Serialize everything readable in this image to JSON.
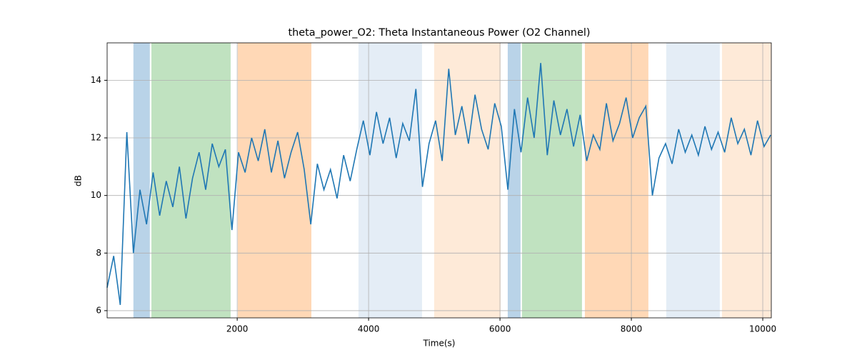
{
  "chart_data": {
    "type": "line",
    "title": "theta_power_O2: Theta Instantaneous Power (O2 Channel)",
    "xlabel": "Time(s)",
    "ylabel": "dB",
    "xlim": [
      20,
      10130
    ],
    "ylim": [
      5.75,
      15.3
    ],
    "xticks": [
      2000,
      4000,
      6000,
      8000,
      10000
    ],
    "yticks": [
      6,
      8,
      10,
      12,
      14
    ],
    "grid": true,
    "spans": [
      {
        "start": 420,
        "end": 670,
        "color": "#b9d3e8"
      },
      {
        "start": 694,
        "end": 1900,
        "color": "#c0e2c0"
      },
      {
        "start": 2009,
        "end": 3129,
        "color": "#ffd8b6"
      },
      {
        "start": 3846,
        "end": 4813,
        "color": "#e4edf6"
      },
      {
        "start": 4998,
        "end": 6009,
        "color": "#feead8"
      },
      {
        "start": 6118,
        "end": 6313,
        "color": "#b9d3e8"
      },
      {
        "start": 6335,
        "end": 7248,
        "color": "#c0e2c0"
      },
      {
        "start": 7292,
        "end": 8259,
        "color": "#ffd8b6"
      },
      {
        "start": 8531,
        "end": 9346,
        "color": "#e4edf6"
      },
      {
        "start": 9379,
        "end": 10130,
        "color": "#feead8"
      }
    ],
    "series": [
      {
        "name": "theta_power_O2",
        "color": "#1f77b4",
        "x": [
          20,
          120,
          220,
          320,
          420,
          520,
          620,
          720,
          820,
          920,
          1020,
          1120,
          1220,
          1320,
          1420,
          1520,
          1620,
          1720,
          1820,
          1920,
          2020,
          2120,
          2220,
          2320,
          2420,
          2520,
          2620,
          2720,
          2820,
          2920,
          3020,
          3120,
          3220,
          3320,
          3420,
          3520,
          3620,
          3720,
          3820,
          3920,
          4020,
          4120,
          4220,
          4320,
          4420,
          4520,
          4620,
          4720,
          4820,
          4920,
          5020,
          5120,
          5220,
          5320,
          5420,
          5520,
          5620,
          5720,
          5820,
          5920,
          6020,
          6120,
          6220,
          6320,
          6420,
          6520,
          6620,
          6720,
          6820,
          6920,
          7020,
          7120,
          7220,
          7320,
          7420,
          7520,
          7620,
          7720,
          7820,
          7920,
          8020,
          8120,
          8220,
          8320,
          8420,
          8520,
          8620,
          8720,
          8820,
          8920,
          9020,
          9120,
          9220,
          9320,
          9420,
          9520,
          9620,
          9720,
          9820,
          9920,
          10020,
          10120
        ],
        "values": [
          6.8,
          7.9,
          6.2,
          12.2,
          8.0,
          10.2,
          9.0,
          10.8,
          9.3,
          10.5,
          9.6,
          11.0,
          9.2,
          10.6,
          11.5,
          10.2,
          11.8,
          11.0,
          11.6,
          8.8,
          11.5,
          10.8,
          12.0,
          11.2,
          12.3,
          10.8,
          11.9,
          10.6,
          11.5,
          12.2,
          10.9,
          9.0,
          11.1,
          10.2,
          10.9,
          9.9,
          11.4,
          10.5,
          11.6,
          12.6,
          11.4,
          12.9,
          11.8,
          12.7,
          11.3,
          12.5,
          11.9,
          13.7,
          10.3,
          11.8,
          12.6,
          11.2,
          14.4,
          12.1,
          13.1,
          11.8,
          13.5,
          12.3,
          11.6,
          13.2,
          12.4,
          10.2,
          13.0,
          11.5,
          13.4,
          12.0,
          14.6,
          11.4,
          13.3,
          12.1,
          13.0,
          11.7,
          12.8,
          11.2,
          12.1,
          11.6,
          13.2,
          11.9,
          12.5,
          13.4,
          12.0,
          12.7,
          13.1,
          10.0,
          11.3,
          11.8,
          11.1,
          12.3,
          11.5,
          12.1,
          11.4,
          12.4,
          11.6,
          12.2,
          11.5,
          12.7,
          11.8,
          12.3,
          11.4,
          12.6,
          11.7,
          12.1
        ]
      }
    ]
  }
}
